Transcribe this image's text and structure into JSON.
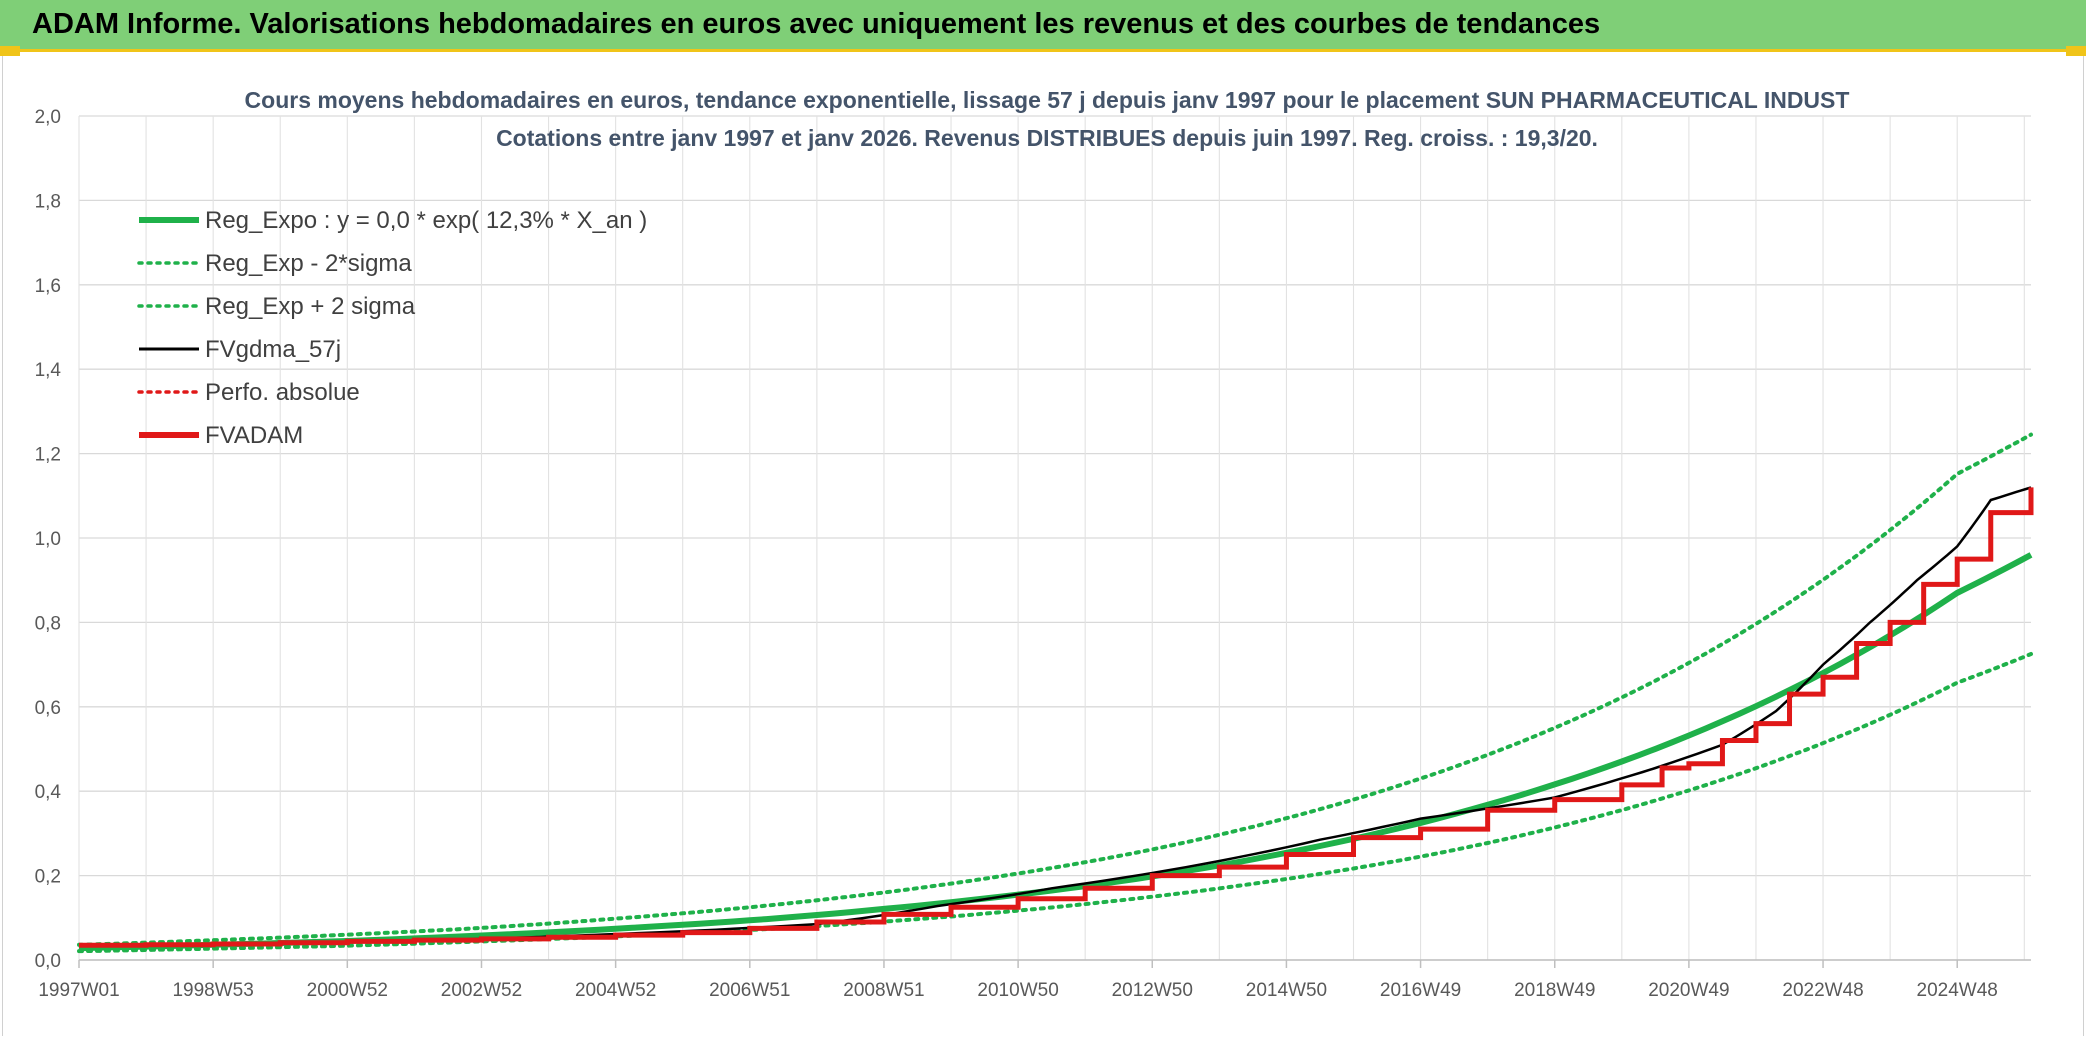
{
  "header": {
    "title": "ADAM Informe. Valorisations hebdomadaires en euros avec uniquement les revenus et des courbes de tendances"
  },
  "chart_data": {
    "type": "line",
    "title": "Cours moyens hebdomadaires en euros, tendance exponentielle, lissage 57 j depuis janv 1997 pour le placement SUN PHARMACEUTICAL INDUST",
    "subtitle": "Cotations entre janv 1997 et janv 2026. Revenus DISTRIBUES depuis juin 1997. Reg. croiss. : 19,3/20.",
    "xlabel": "",
    "ylabel": "",
    "ylim": [
      0,
      2.0
    ],
    "y_ticks": [
      "0,0",
      "0,2",
      "0,4",
      "0,6",
      "0,8",
      "1,0",
      "1,2",
      "1,4",
      "1,6",
      "1,8",
      "2,0"
    ],
    "x_range": [
      1997.0,
      2026.1
    ],
    "x_ticks": [
      {
        "label": "1997W01",
        "year": 1997.0
      },
      {
        "label": "1998W53",
        "year": 1999.0
      },
      {
        "label": "2000W52",
        "year": 2001.0
      },
      {
        "label": "2002W52",
        "year": 2003.0
      },
      {
        "label": "2004W52",
        "year": 2005.0
      },
      {
        "label": "2006W51",
        "year": 2007.0
      },
      {
        "label": "2008W51",
        "year": 2009.0
      },
      {
        "label": "2010W50",
        "year": 2011.0
      },
      {
        "label": "2012W50",
        "year": 2013.0
      },
      {
        "label": "2014W50",
        "year": 2015.0
      },
      {
        "label": "2016W49",
        "year": 2017.0
      },
      {
        "label": "2018W49",
        "year": 2019.0
      },
      {
        "label": "2020W49",
        "year": 2021.0
      },
      {
        "label": "2022W48",
        "year": 2023.0
      },
      {
        "label": "2024W48",
        "year": 2025.0
      }
    ],
    "grid": true,
    "legend_position": "top-left",
    "series": [
      {
        "name": "Reg_Expo : y = 0,0 * exp( 12,3% *  X_an )",
        "color": "#1fb14a",
        "style": "solid-thick",
        "x": [
          1997,
          1999,
          2001,
          2003,
          2005,
          2007,
          2009,
          2011,
          2013,
          2015,
          2017,
          2019,
          2021,
          2023,
          2025,
          2026.1
        ],
        "y": [
          0.028,
          0.036,
          0.045,
          0.058,
          0.074,
          0.094,
          0.121,
          0.155,
          0.198,
          0.254,
          0.325,
          0.416,
          0.532,
          0.68,
          0.87,
          0.96
        ]
      },
      {
        "name": "Reg_Exp - 2*sigma",
        "color": "#1fb14a",
        "style": "dotted",
        "x": [
          1997,
          1999,
          2001,
          2003,
          2005,
          2007,
          2009,
          2011,
          2013,
          2015,
          2017,
          2019,
          2021,
          2023,
          2025,
          2026.1
        ],
        "y": [
          0.021,
          0.027,
          0.034,
          0.044,
          0.056,
          0.071,
          0.091,
          0.117,
          0.15,
          0.192,
          0.245,
          0.314,
          0.402,
          0.514,
          0.657,
          0.725
        ]
      },
      {
        "name": "Reg_Exp + 2 sigma",
        "color": "#1fb14a",
        "style": "dotted",
        "x": [
          1997,
          1999,
          2001,
          2003,
          2005,
          2007,
          2009,
          2011,
          2013,
          2015,
          2017,
          2019,
          2021,
          2023,
          2025,
          2026.1
        ],
        "y": [
          0.036,
          0.047,
          0.06,
          0.076,
          0.098,
          0.125,
          0.16,
          0.205,
          0.262,
          0.336,
          0.43,
          0.55,
          0.704,
          0.901,
          1.152,
          1.245
        ]
      },
      {
        "name": "FVgdma_57j",
        "color": "#000000",
        "style": "solid",
        "x": [
          1997,
          2000,
          2003,
          2006,
          2008,
          2009.8,
          2011.5,
          2013.5,
          2015.5,
          2017,
          2019,
          2020.5,
          2021.5,
          2022.3,
          2023,
          2023.7,
          2024.4,
          2025,
          2025.5,
          2026.1
        ],
        "y": [
          0.034,
          0.04,
          0.05,
          0.068,
          0.085,
          0.128,
          0.17,
          0.22,
          0.285,
          0.335,
          0.385,
          0.455,
          0.51,
          0.59,
          0.7,
          0.8,
          0.9,
          0.98,
          1.09,
          1.12
        ]
      },
      {
        "name": "Perfo. absolue",
        "color": "#e01818",
        "style": "dotted",
        "x": [],
        "y": []
      },
      {
        "name": "FVADAM",
        "color": "#e01818",
        "style": "step-thick",
        "x": [
          1997.0,
          1998.0,
          1999.0,
          2000.0,
          2001.0,
          2002.0,
          2003.0,
          2004.0,
          2005.0,
          2006.0,
          2007.0,
          2008.0,
          2009.0,
          2010.0,
          2011.0,
          2012.0,
          2013.0,
          2014.0,
          2015.0,
          2016.0,
          2017.0,
          2018.0,
          2019.0,
          2020.0,
          2020.6,
          2021.0,
          2021.5,
          2022.0,
          2022.5,
          2023.0,
          2023.5,
          2024.0,
          2024.5,
          2025.0,
          2025.5,
          2026.1
        ],
        "y": [
          0.035,
          0.036,
          0.038,
          0.041,
          0.044,
          0.047,
          0.05,
          0.054,
          0.059,
          0.065,
          0.075,
          0.09,
          0.108,
          0.125,
          0.145,
          0.17,
          0.2,
          0.22,
          0.25,
          0.29,
          0.31,
          0.355,
          0.38,
          0.415,
          0.455,
          0.465,
          0.52,
          0.56,
          0.63,
          0.67,
          0.75,
          0.8,
          0.89,
          0.95,
          1.06,
          1.12
        ]
      }
    ]
  }
}
